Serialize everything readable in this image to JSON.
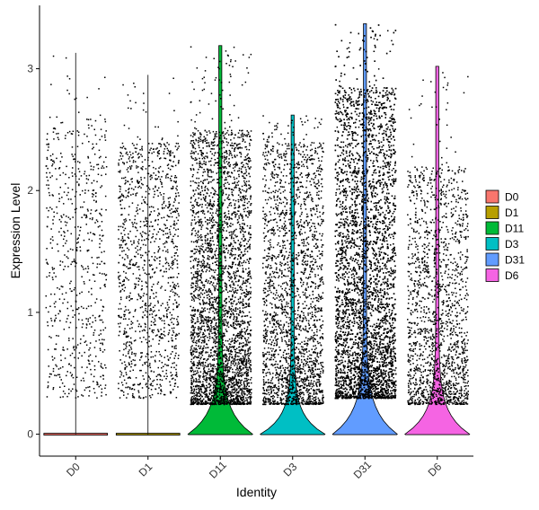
{
  "chart_data": {
    "type": "violin",
    "xlabel": "Identity",
    "ylabel": "Expression Level",
    "categories": [
      "D0",
      "D1",
      "D11",
      "D3",
      "D31",
      "D6"
    ],
    "ylim": [
      -0.18,
      3.52
    ],
    "yticks": [
      0,
      1,
      2,
      3
    ],
    "legend": {
      "position": "right",
      "items": [
        {
          "label": "D0",
          "color": "#F8766D"
        },
        {
          "label": "D1",
          "color": "#B79F00"
        },
        {
          "label": "D11",
          "color": "#00BA38"
        },
        {
          "label": "D3",
          "color": "#00BFC4"
        },
        {
          "label": "D31",
          "color": "#619CFF"
        },
        {
          "label": "D6",
          "color": "#F564E3"
        }
      ]
    },
    "series": [
      {
        "name": "D0",
        "color": "#F8766D",
        "max": 3.13,
        "n_points": 650,
        "point_range": [
          0.3,
          2.6
        ]
      },
      {
        "name": "D1",
        "color": "#B79F00",
        "max": 2.95,
        "n_points": 1200,
        "point_range": [
          0.3,
          2.4
        ]
      },
      {
        "name": "D11",
        "color": "#00BA38",
        "max": 3.19,
        "n_points": 3500,
        "point_range": [
          0.25,
          2.5
        ]
      },
      {
        "name": "D3",
        "color": "#00BFC4",
        "max": 2.62,
        "n_points": 2300,
        "point_range": [
          0.25,
          2.4
        ]
      },
      {
        "name": "D31",
        "color": "#619CFF",
        "max": 3.37,
        "n_points": 6500,
        "point_range": [
          0.3,
          2.85
        ]
      },
      {
        "name": "D6",
        "color": "#F564E3",
        "max": 3.02,
        "n_points": 1700,
        "point_range": [
          0.25,
          2.2
        ]
      }
    ]
  }
}
